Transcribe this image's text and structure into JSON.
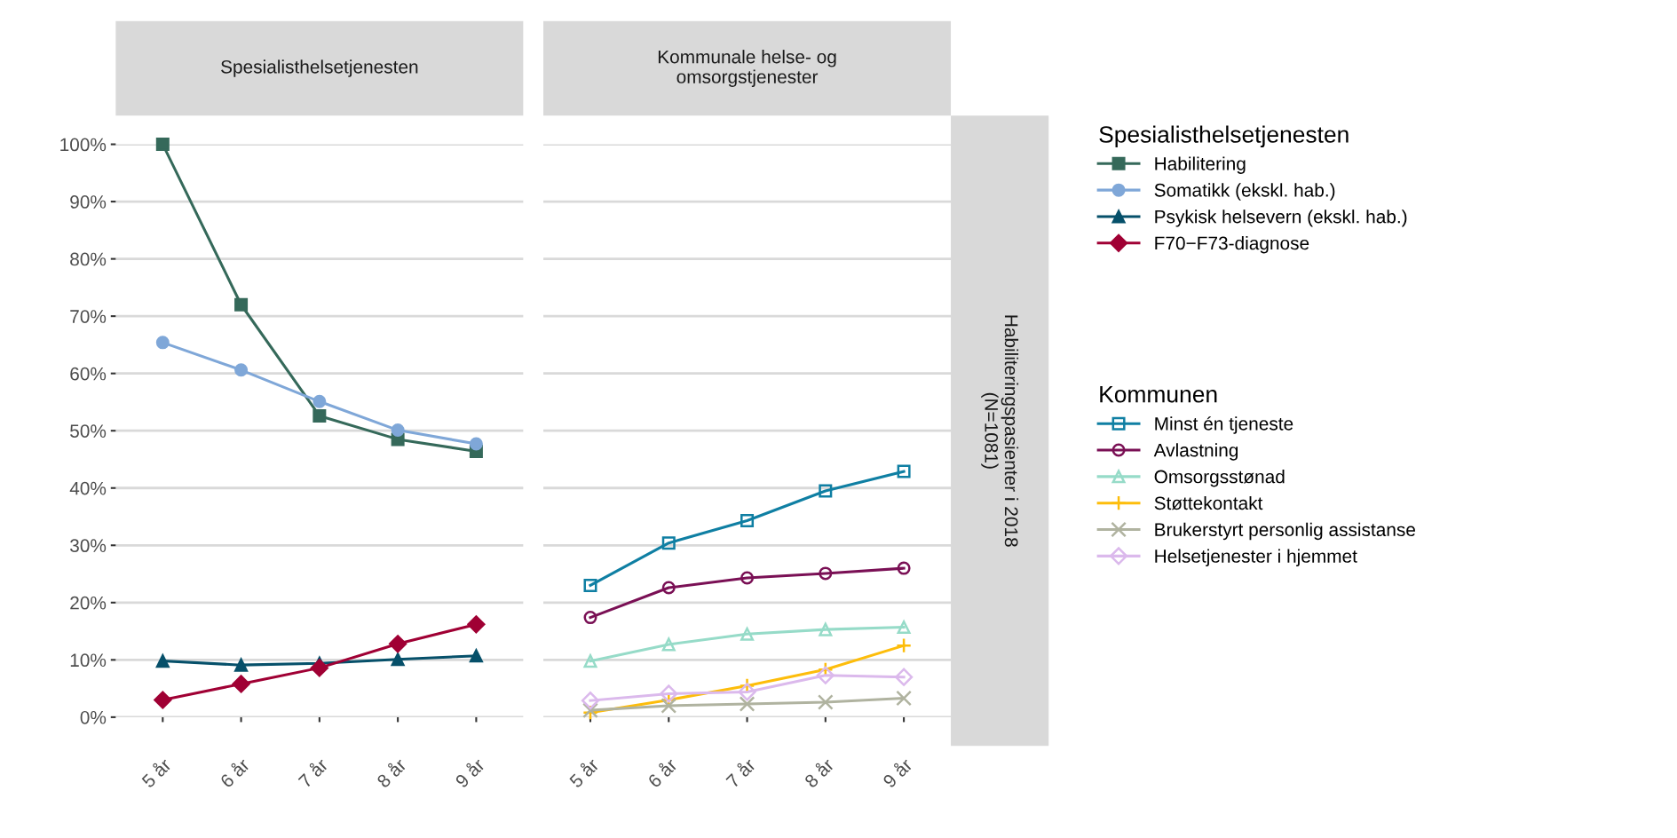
{
  "chart_data": [
    {
      "type": "line",
      "title": "Spesialisthelsetjenesten",
      "legend_title": "Spesialisthelsetjenesten",
      "categories": [
        "5 år",
        "6 år",
        "7 år",
        "8 år",
        "9 år"
      ],
      "ylim": [
        0,
        100
      ],
      "yticks": [
        {
          "value": 0,
          "label": "0%"
        },
        {
          "value": 10,
          "label": "10%"
        },
        {
          "value": 20,
          "label": "20%"
        },
        {
          "value": 30,
          "label": "30%"
        },
        {
          "value": 40,
          "label": "40%"
        },
        {
          "value": 50,
          "label": "50%"
        },
        {
          "value": 60,
          "label": "60%"
        },
        {
          "value": 70,
          "label": "70%"
        },
        {
          "value": 80,
          "label": "80%"
        },
        {
          "value": 90,
          "label": "90%"
        },
        {
          "value": 100,
          "label": "100%"
        }
      ],
      "grid": "y",
      "legend": "right",
      "line_style": "solid",
      "series": [
        {
          "name": "Habilitering",
          "color": "#35695a",
          "marker": "square",
          "values": [
            100,
            72.0,
            52.6,
            48.5,
            46.4
          ]
        },
        {
          "name": "Somatikk (ekskl. hab.)",
          "color": "#7fa7d8",
          "marker": "circle",
          "values": [
            65.4,
            60.6,
            55.1,
            50.1,
            47.7
          ]
        },
        {
          "name": "Psykisk helsevern (ekskl. hab.)",
          "color": "#06506a",
          "marker": "triangle",
          "values": [
            9.8,
            9.1,
            9.4,
            10.1,
            10.7
          ]
        },
        {
          "name": "F70−F73-diagnose",
          "color": "#a00034",
          "marker": "diamond",
          "values": [
            3.0,
            5.8,
            8.6,
            12.8,
            16.2
          ]
        }
      ]
    },
    {
      "type": "line",
      "title": "Kommunale helse- og\nomsorgstjenester",
      "legend_title": "Kommunen",
      "annotations": [
        "Habiliteringspasienter i 2018\n(N=1081)"
      ],
      "categories": [
        "5 år",
        "6 år",
        "7 år",
        "8 år",
        "9 år"
      ],
      "ylim": [
        0,
        100
      ],
      "yticks": [
        {
          "value": 0,
          "label": null
        },
        {
          "value": 10,
          "label": null
        },
        {
          "value": 20,
          "label": null
        },
        {
          "value": 30,
          "label": null
        },
        {
          "value": 40,
          "label": null
        },
        {
          "value": 50,
          "label": null
        },
        {
          "value": 60,
          "label": null
        },
        {
          "value": 70,
          "label": null
        },
        {
          "value": 80,
          "label": null
        },
        {
          "value": 90,
          "label": null
        },
        {
          "value": 100,
          "label": null
        }
      ],
      "tick_labels": "x",
      "grid": "y",
      "legend": "right",
      "line_style": "solid",
      "series": [
        {
          "name": "Minst én tjeneste",
          "color": "#0f7fa3",
          "marker": "square",
          "values": [
            23.0,
            30.4,
            34.3,
            39.5,
            42.9
          ]
        },
        {
          "name": "Avlastning",
          "color": "#7a1055",
          "marker": "circle",
          "values": [
            17.4,
            22.6,
            24.3,
            25.1,
            26.0
          ]
        },
        {
          "name": "Omsorgsstønad",
          "color": "#96dbc8",
          "marker": "triangle",
          "values": [
            9.8,
            12.7,
            14.5,
            15.3,
            15.7
          ]
        },
        {
          "name": "Støttekontakt",
          "color": "#fdbd0b",
          "marker": "plus",
          "values": [
            0.8,
            3.0,
            5.5,
            8.3,
            12.5
          ]
        },
        {
          "name": "Brukerstyrt personlig assistanse",
          "color": "#b0b3a0",
          "marker": "cross",
          "values": [
            1.2,
            2.0,
            2.3,
            2.6,
            3.3
          ]
        },
        {
          "name": "Helsetjenester i hjemmet",
          "color": "#dbb9ec",
          "marker": "diamond",
          "values": [
            2.9,
            4.1,
            4.4,
            7.3,
            7.0
          ]
        }
      ]
    }
  ]
}
